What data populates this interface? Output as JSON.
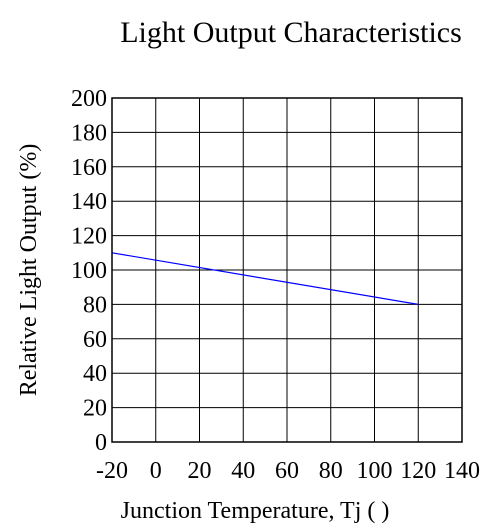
{
  "chart_data": {
    "type": "line",
    "title": "Light Output Characteristics",
    "xlabel": "Junction Temperature, Tj (   )",
    "ylabel": "Relative Light Output (%)",
    "xlim": [
      -20,
      140
    ],
    "ylim": [
      0,
      200
    ],
    "x_ticks": [
      -20,
      0,
      20,
      40,
      60,
      80,
      100,
      120,
      140
    ],
    "y_ticks": [
      0,
      20,
      40,
      60,
      80,
      100,
      120,
      140,
      160,
      180,
      200
    ],
    "grid": true,
    "series": [
      {
        "color": "#0000ff",
        "x": [
          -20,
          120
        ],
        "y": [
          110,
          80
        ]
      }
    ]
  }
}
